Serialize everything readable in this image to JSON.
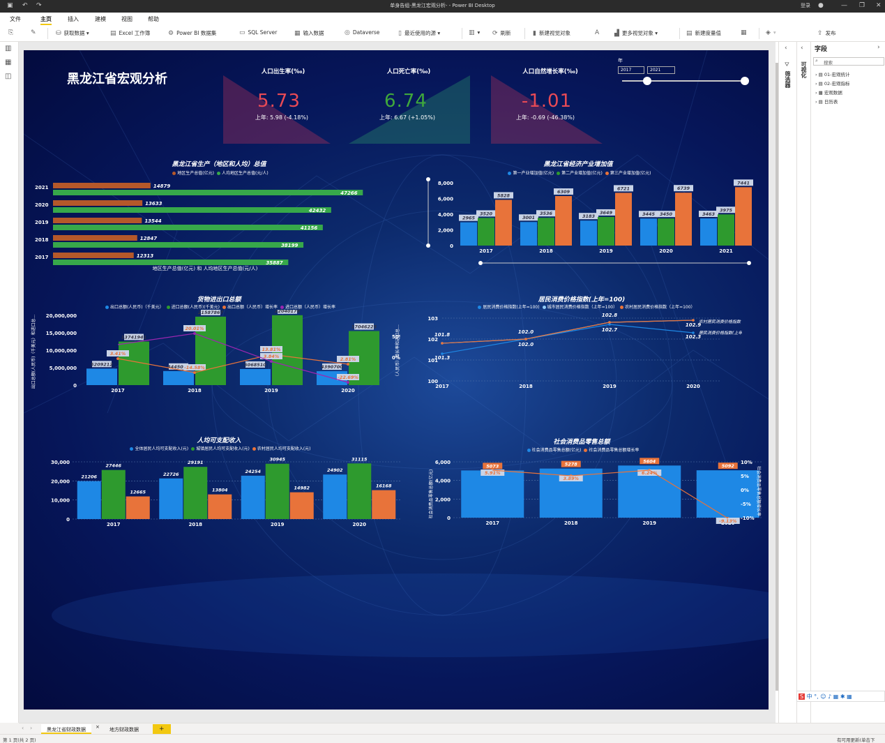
{
  "app": {
    "title": "单身告组-黑龙江宏观分析- - Power BI Desktop",
    "login": "登录"
  },
  "menu": [
    "文件",
    "主页",
    "插入",
    "建模",
    "视图",
    "帮助"
  ],
  "ribbon": [
    "获取数据",
    "Excel 工作簿",
    "Power BI 数据集",
    "SQL Server",
    "输入数据",
    "Dataverse",
    "最近使用的源",
    "刷新",
    "新建视觉对象",
    "更多视觉对象",
    "新建度量值",
    "发布"
  ],
  "report": {
    "title": "黑龙江省宏观分析",
    "kpis": [
      {
        "title": "人口出生率(‰)",
        "value": "5.73",
        "sub": "上年: 5.98 (-4.18%)",
        "color": "#e84a55"
      },
      {
        "title": "人口死亡率(‰)",
        "value": "6.74",
        "sub": "上年: 6.67 (+1.05%)",
        "color": "#3fa83c"
      },
      {
        "title": "人口自然增长率(‰)",
        "value": "-1.01",
        "sub": "上年: -0.69 (-46.38%)",
        "color": "#e84a55"
      }
    ],
    "slicer": {
      "label": "年",
      "from": "2017",
      "to": "2021"
    }
  },
  "chart_data": [
    {
      "type": "bar",
      "orientation": "horizontal",
      "title": "黑龙江省生产（地区和人均）总值",
      "categories": [
        "2021",
        "2020",
        "2019",
        "2018",
        "2017"
      ],
      "series": [
        {
          "name": "地区生产总值(亿元)",
          "values": [
            14879,
            13633,
            13544,
            12847,
            12313
          ],
          "color": "#b5582a"
        },
        {
          "name": "人均地区生产总值(元/人)",
          "values": [
            47266,
            42432,
            41156,
            38199,
            35887
          ],
          "color": "#37a84a"
        }
      ],
      "xlabel": "地区生产总值(亿元) 和 人均地区生产总值(元/人)"
    },
    {
      "type": "bar",
      "title": "黑龙江省经济产业增加值",
      "categories": [
        "2017",
        "2018",
        "2019",
        "2020",
        "2021"
      ],
      "series": [
        {
          "name": "第一产业增加值(亿元)",
          "values": [
            2965,
            3001,
            3183,
            3445,
            3463
          ],
          "color": "#1e88e5"
        },
        {
          "name": "第二产业增加值(亿元)",
          "values": [
            3520,
            3536,
            3649,
            3450,
            3975
          ],
          "color": "#2e9a2e"
        },
        {
          "name": "第三产业增加值(亿元)",
          "values": [
            5828,
            6309,
            6721,
            6739,
            7441
          ],
          "color": "#e8733a"
        }
      ],
      "yticks": [
        "0",
        "2,000",
        "4,000",
        "6,000",
        "8,000"
      ],
      "ylim": [
        0,
        8000
      ]
    },
    {
      "type": "bar",
      "title": "货物进出口总额",
      "categories": [
        "2017",
        "2018",
        "2019",
        "2020"
      ],
      "series": [
        {
          "name": "出口总额(人民币)（千美元）",
          "values": [
            5209212,
            4445052,
            5068510,
            4390700
          ],
          "color": "#1e88e5"
        },
        {
          "name": "进口总额(人民币)(千美元)",
          "values": [
            13741941,
            21587867,
            22040178,
            17046225
          ],
          "color": "#2e9a2e"
        },
        {
          "name": "出口总额（人民币）增长率",
          "values": [
            "3.41%",
            "-14.58%",
            "13.81%",
            "2.81%"
          ],
          "color": "#e8733a"
        },
        {
          "name": "进口总额（人民币）增长率",
          "values": [
            "",
            "20.01%",
            "3.84%",
            "-22.69%"
          ],
          "color": "#9c27b0"
        }
      ],
      "yticks": [
        "0",
        "5,000,000",
        "10,000,000",
        "15,000,000",
        "20,000,000"
      ],
      "y2ticks": [
        "0%",
        "50%"
      ],
      "ylabel": "出口总额(人民币)（千美元）和进口总...",
      "ylim": [
        0,
        22000000
      ]
    },
    {
      "type": "line",
      "title": "居民消费价格指数(上年=100)",
      "categories": [
        "2017",
        "2018",
        "2019",
        "2020"
      ],
      "series": [
        {
          "name": "居民消费价格指数(上年=100)",
          "values": [
            101.3,
            102.0,
            102.7,
            102.3
          ],
          "color": "#1e88e5"
        },
        {
          "name": "城市居民消费价格指数（上年=100）",
          "values": [
            101.8,
            102.0,
            102.8,
            102.9
          ],
          "color": "#90caf9"
        },
        {
          "name": "农村居民消费价格指数（上年=100）",
          "values": [
            101.8,
            102.0,
            102.8,
            102.9
          ],
          "color": "#e8733a"
        }
      ],
      "labels": [
        "101.8",
        "101.3",
        "102.0",
        "102.0",
        "102.8",
        "102.7",
        "102.9",
        "102.3"
      ],
      "end_labels": [
        "农村居民消费价格指数（上年=100）",
        "居民消费价格指数(上年=100)"
      ],
      "yticks": [
        "100",
        "101",
        "102",
        "103"
      ],
      "ylim": [
        100,
        103
      ],
      "ylabel": "（人民币）增长率和进口总..."
    },
    {
      "type": "bar",
      "title": "人均可支配收入",
      "categories": [
        "2017",
        "2018",
        "2019",
        "2020"
      ],
      "series": [
        {
          "name": "全体居民人均可支配收入(元)",
          "values": [
            21206,
            22726,
            24254,
            24902
          ],
          "color": "#1e88e5"
        },
        {
          "name": "城镇居民人均可支配收入(元)",
          "values": [
            27446,
            29191,
            30945,
            31115
          ],
          "color": "#2e9a2e"
        },
        {
          "name": "农村居民人均可支配收入(元)",
          "values": [
            12665,
            13804,
            14982,
            16168
          ],
          "color": "#e8733a"
        }
      ],
      "yticks": [
        "0",
        "10,000",
        "20,000",
        "30,000"
      ],
      "ylim": [
        0,
        32000
      ]
    },
    {
      "type": "bar",
      "title": "社会消费品零售总额",
      "categories": [
        "2017",
        "2018",
        "2019",
        "2020"
      ],
      "series": [
        {
          "name": "社会消费品零售总额(亿元)",
          "values": [
            5073,
            5278,
            5604,
            5092
          ],
          "color": "#1e88e5"
        },
        {
          "name": "社会消费品零售总额增长率",
          "values": [
            "5.91%",
            "3.89%",
            "6.24%",
            "-9.13%"
          ],
          "color": "#e8733a"
        }
      ],
      "yticks": [
        "0",
        "2,000",
        "4,000",
        "6,000"
      ],
      "y2ticks": [
        "-10%",
        "-5%",
        "0%",
        "5%",
        "10%"
      ],
      "ylabel": "社会消费品零售总额(亿元)",
      "y2label": "社会消费品零售总额增长率",
      "ylim": [
        0,
        6000
      ]
    }
  ],
  "filters": {
    "label": "筛选器"
  },
  "viz": {
    "label": "可视化"
  },
  "fields": {
    "title": "字段",
    "search_placeholder": "搜索",
    "items": [
      "01-宏观统计",
      "02-宏观指标",
      "宏观数据",
      "日历表"
    ]
  },
  "tabs": [
    "黑龙江省财政数据",
    "地方财政数据",
    "+"
  ],
  "status": {
    "page": "第 1 页(共 2 页)",
    "update": "有可用更新(单击下"
  }
}
